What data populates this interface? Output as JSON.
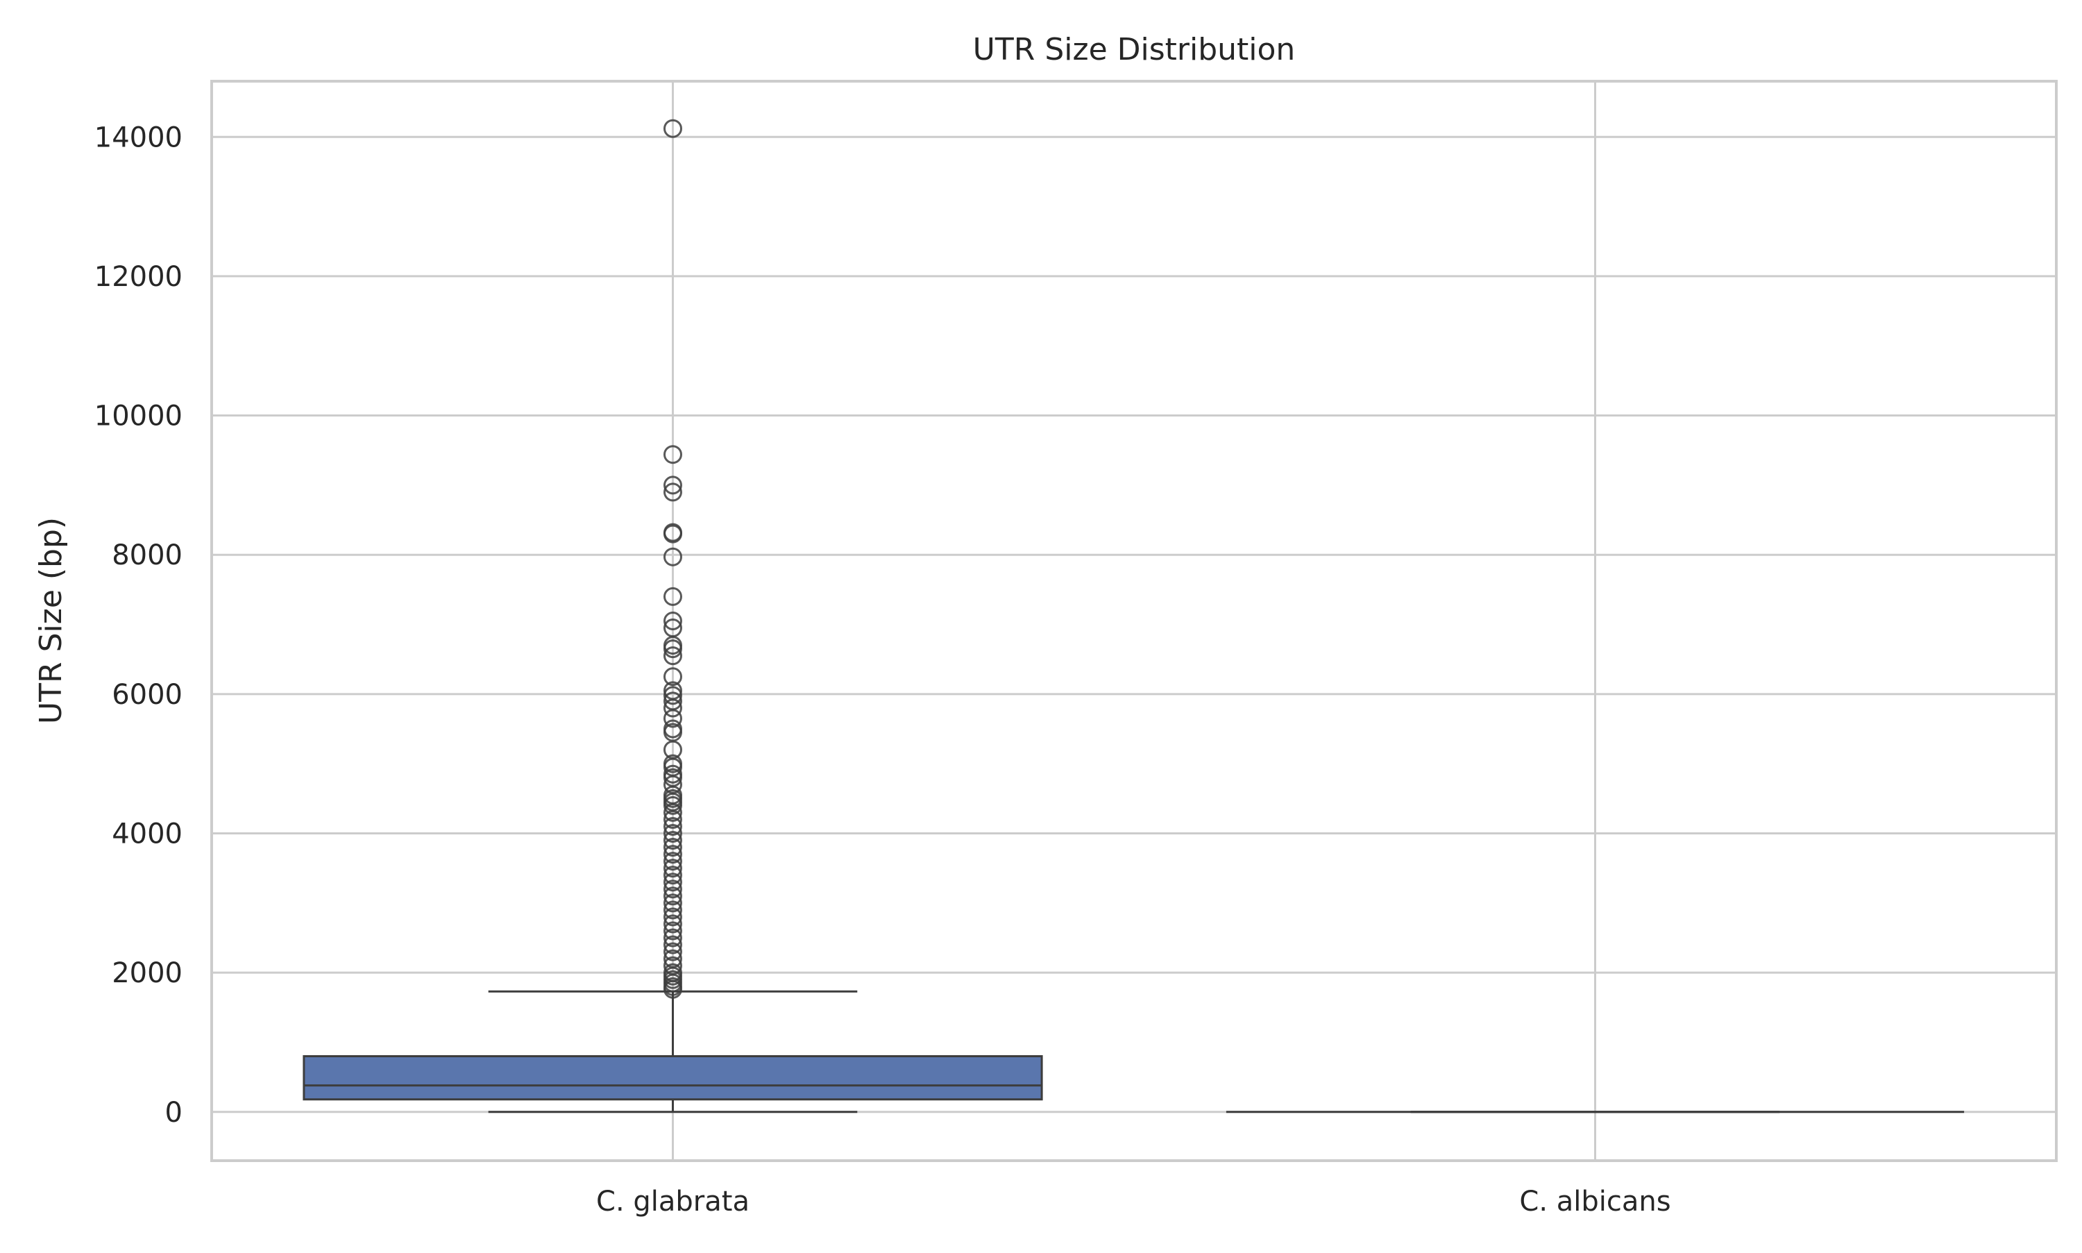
{
  "chart_data": {
    "type": "box",
    "title": "UTR Size Distribution",
    "xlabel": "",
    "ylabel": "UTR Size (bp)",
    "ylim": [
      -700,
      14800
    ],
    "yticks": [
      0,
      2000,
      4000,
      6000,
      8000,
      10000,
      12000,
      14000
    ],
    "ytick_labels": [
      "0",
      "2000",
      "4000",
      "6000",
      "8000",
      "10000",
      "12000",
      "14000"
    ],
    "grid": true,
    "categories": [
      "C. glabrata",
      "C. albicans"
    ],
    "colors": {
      "box": "#5a76ad",
      "line": "#3d3d3d",
      "grid": "#cccccc"
    },
    "series": [
      {
        "category": "C. glabrata",
        "whisker_low": 0,
        "q1": 180,
        "median": 380,
        "q3": 800,
        "whisker_high": 1730,
        "outliers": [
          14120,
          9440,
          9000,
          8900,
          8320,
          8300,
          7970,
          7400,
          7050,
          6950,
          6700,
          6650,
          6550,
          6250,
          6050,
          5980,
          5900,
          5800,
          5650,
          5500,
          5450,
          5200,
          5000,
          4950,
          4850,
          4800,
          4700,
          4550,
          4500,
          4450,
          4400,
          4300,
          4200,
          4100,
          4000,
          3900,
          3800,
          3700,
          3600,
          3500,
          3400,
          3300,
          3200,
          3100,
          3000,
          2900,
          2800,
          2700,
          2600,
          2500,
          2400,
          2300,
          2200,
          2100,
          2000,
          1950,
          1900,
          1850,
          1800,
          1760
        ]
      },
      {
        "category": "C. albicans",
        "whisker_low": 0,
        "q1": 0,
        "median": 0,
        "q3": 0,
        "whisker_high": 0,
        "outliers": []
      }
    ]
  }
}
